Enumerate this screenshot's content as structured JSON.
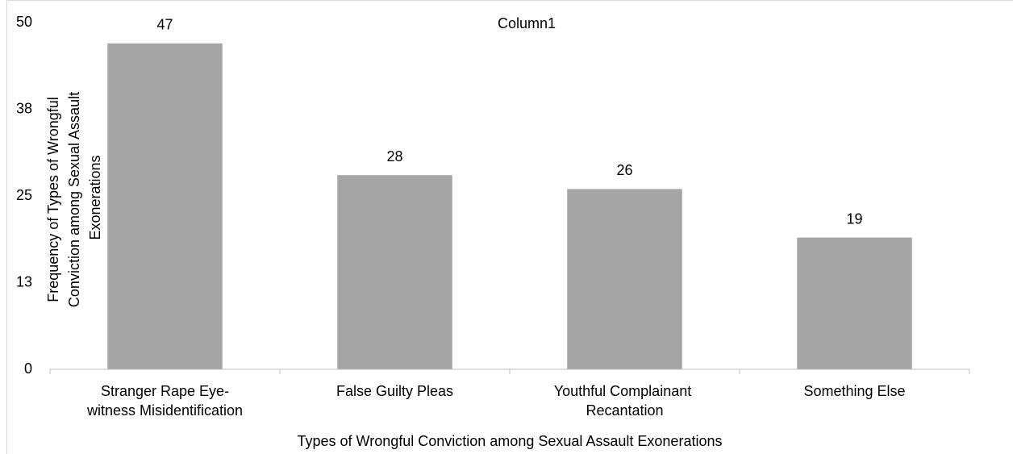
{
  "chart_data": {
    "type": "bar",
    "title": "Column1",
    "x_label": "Types of Wrongful Conviction among Sexual Assault Exonerations",
    "y_label": "Frequency of Types of Wrongful Conviction among Sexual Assault Exonerations",
    "categories": [
      "Stranger Rape Eye-witness Misidentification",
      "False Guilty Pleas",
      "Youthful Complainant Recantation",
      "Something Else"
    ],
    "values": [
      47,
      28,
      26,
      19
    ],
    "color": "#a5a5a5",
    "ylim": [
      0,
      50
    ],
    "yticks": [
      0,
      {
        "value": 12.5,
        "label": "13"
      },
      25,
      {
        "value": 37.5,
        "label": "38"
      },
      50
    ],
    "grid": false
  }
}
